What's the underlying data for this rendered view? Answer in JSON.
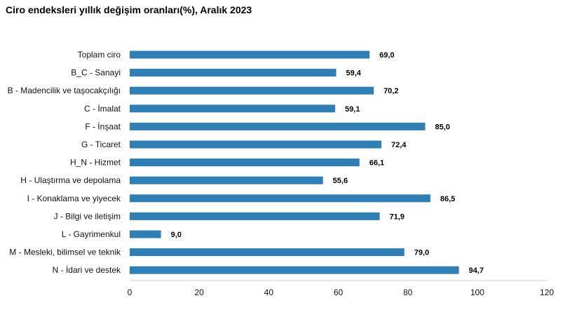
{
  "chart_data": {
    "type": "bar",
    "orientation": "horizontal",
    "title": "Ciro endeksleri yıllık değişim oranları(%), Aralık 2023",
    "categories": [
      "Toplam ciro",
      "B_C - Sanayi",
      "B - Madencilik ve taşocakçılığı",
      "C - İmalat",
      "F - İnşaat",
      "G - Ticaret",
      "H_N - Hizmet",
      "H - Ulaştırma ve depolama",
      "I - Konaklama ve yiyecek",
      "J - Bilgi ve iletişim",
      "L - Gayrimenkul",
      "M - Mesleki, bilimsel ve teknik",
      "N - İdari ve destek"
    ],
    "values": [
      69.0,
      59.4,
      70.2,
      59.1,
      85.0,
      72.4,
      66.1,
      55.6,
      86.5,
      71.9,
      9.0,
      79.0,
      94.7
    ],
    "value_labels": [
      "69,0",
      "59,4",
      "70,2",
      "59,1",
      "85,0",
      "72,4",
      "66,1",
      "55,6",
      "86,5",
      "71,9",
      "9,0",
      "79,0",
      "94,7"
    ],
    "xlim": [
      0,
      120
    ],
    "xticks": [
      0,
      20,
      40,
      60,
      80,
      100,
      120
    ],
    "xlabel": "",
    "ylabel": "",
    "bar_color": "#2e7fb6",
    "grid": false,
    "legend": "none"
  }
}
